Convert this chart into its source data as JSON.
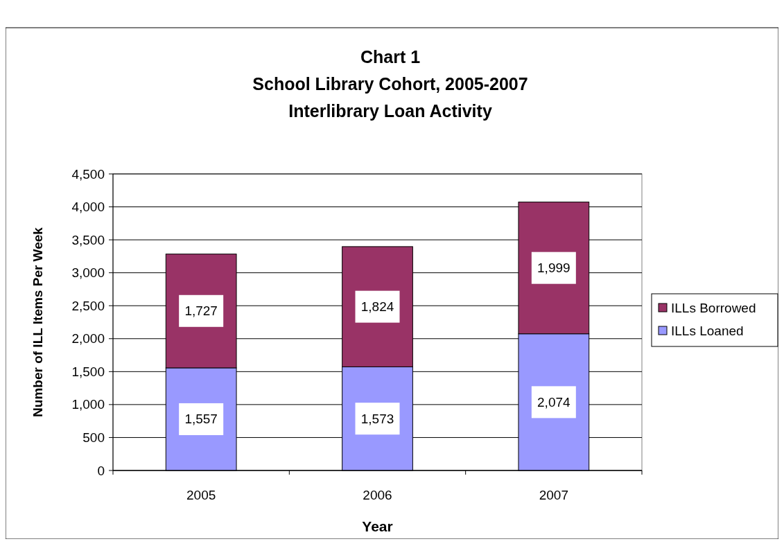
{
  "chart_data": {
    "type": "bar",
    "title": "Chart 1\nSchool Library Cohort, 2005-2007\nInterlibrary Loan Activity",
    "xlabel": "Year",
    "ylabel": "Number of ILL Items Per Week",
    "categories": [
      "2005",
      "2006",
      "2007"
    ],
    "series": [
      {
        "name": "ILLs Loaned",
        "color": "#9999ff",
        "values": [
          1557,
          1573,
          2074
        ],
        "value_labels": [
          "1,557",
          "1,573",
          "2,074"
        ]
      },
      {
        "name": "ILLs Borrowed",
        "color": "#993366",
        "values": [
          1727,
          1824,
          1999
        ],
        "value_labels": [
          "1,727",
          "1,824",
          "1,999"
        ]
      }
    ],
    "stacked": true,
    "ylim": [
      0,
      4500
    ],
    "yticks": [
      {
        "value": 0,
        "label": "0"
      },
      {
        "value": 500,
        "label": "500"
      },
      {
        "value": 1000,
        "label": "1,000"
      },
      {
        "value": 1500,
        "label": "1,500"
      },
      {
        "value": 2000,
        "label": "2,000"
      },
      {
        "value": 2500,
        "label": "2,500"
      },
      {
        "value": 3000,
        "label": "3,000"
      },
      {
        "value": 3500,
        "label": "3,500"
      },
      {
        "value": 4000,
        "label": "4,000"
      },
      {
        "value": 4500,
        "label": "4,500"
      }
    ],
    "grid": "y",
    "legend": "right"
  }
}
